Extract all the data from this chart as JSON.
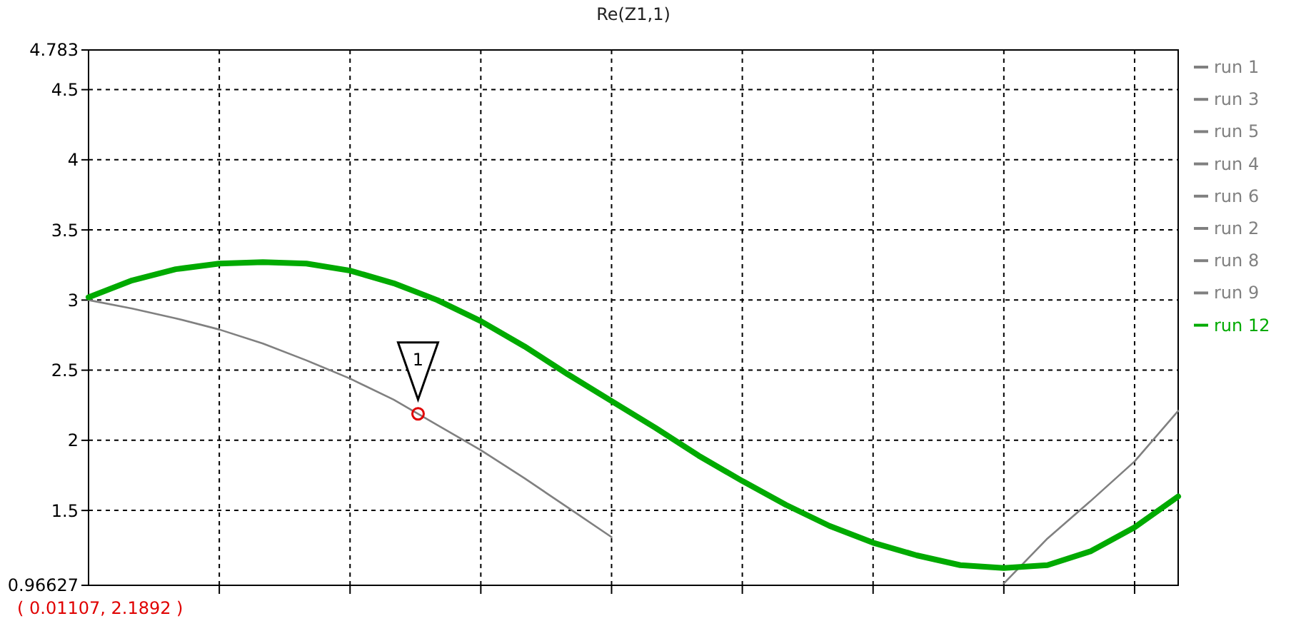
{
  "chart_data": {
    "type": "line",
    "title": "Re(Z1,1)",
    "categories": [
      null,
      null,
      null,
      null,
      null,
      null,
      null,
      null,
      null,
      null,
      null,
      null,
      null,
      null,
      null,
      null,
      null,
      null,
      null,
      null,
      null,
      null,
      null,
      null,
      null,
      null
    ],
    "ylim": [
      0.96627,
      4.783
    ],
    "yticks": [
      0.96627,
      1.5,
      2,
      2.5,
      3,
      3.5,
      4,
      4.5,
      4.783
    ],
    "grid": true,
    "legend": "right",
    "line_style": "solid",
    "marker": "none",
    "annotations": [
      {
        "text": "1",
        "y": 2.1892
      },
      "( 0.01107, 2.1892 )"
    ],
    "series": [
      {
        "name": "run 1",
        "color": "#808080",
        "values": [
          3.0,
          2.94,
          2.87,
          2.79,
          2.69,
          2.57,
          2.44,
          2.29,
          2.11,
          1.93,
          1.73,
          1.52,
          1.31,
          null,
          null,
          null,
          null,
          null,
          null,
          null,
          null,
          0.98,
          1.3,
          1.57,
          1.85,
          2.21
        ]
      },
      {
        "name": "run 3",
        "color": "#808080",
        "values": [
          null,
          null,
          null,
          null,
          null,
          null,
          null,
          null,
          null,
          null,
          null,
          null,
          null,
          null,
          null,
          null,
          null,
          null,
          null,
          null,
          null,
          null,
          null,
          null,
          null,
          null
        ]
      },
      {
        "name": "run 5",
        "color": "#808080",
        "values": [
          null,
          null,
          null,
          null,
          null,
          null,
          null,
          null,
          null,
          null,
          null,
          null,
          null,
          null,
          null,
          null,
          null,
          null,
          null,
          null,
          null,
          null,
          null,
          null,
          null,
          null
        ]
      },
      {
        "name": "run 4",
        "color": "#808080",
        "values": [
          null,
          null,
          null,
          null,
          null,
          null,
          null,
          null,
          null,
          null,
          null,
          null,
          null,
          null,
          null,
          null,
          null,
          null,
          null,
          null,
          null,
          null,
          null,
          null,
          null,
          null
        ]
      },
      {
        "name": "run 6",
        "color": "#808080",
        "values": [
          null,
          null,
          null,
          null,
          null,
          null,
          null,
          null,
          null,
          null,
          null,
          null,
          null,
          null,
          null,
          null,
          null,
          null,
          null,
          null,
          null,
          null,
          null,
          null,
          null,
          null
        ]
      },
      {
        "name": "run 2",
        "color": "#808080",
        "values": [
          null,
          null,
          null,
          null,
          null,
          null,
          null,
          null,
          null,
          null,
          null,
          null,
          null,
          null,
          null,
          null,
          null,
          null,
          null,
          null,
          null,
          null,
          null,
          null,
          null,
          null
        ]
      },
      {
        "name": "run 8",
        "color": "#808080",
        "values": [
          null,
          null,
          null,
          null,
          null,
          null,
          null,
          null,
          null,
          null,
          null,
          null,
          null,
          null,
          null,
          null,
          null,
          null,
          null,
          null,
          null,
          null,
          null,
          null,
          null,
          null
        ]
      },
      {
        "name": "run 9",
        "color": "#808080",
        "values": [
          null,
          null,
          null,
          null,
          null,
          null,
          null,
          null,
          null,
          null,
          null,
          null,
          null,
          null,
          null,
          null,
          null,
          null,
          null,
          null,
          null,
          null,
          null,
          null,
          null,
          null
        ]
      },
      {
        "name": "run 12",
        "color": "#00aa00",
        "values": [
          3.02,
          3.14,
          3.22,
          3.26,
          3.27,
          3.26,
          3.21,
          3.12,
          3.0,
          2.85,
          2.67,
          2.47,
          2.28,
          2.09,
          1.89,
          1.71,
          1.54,
          1.39,
          1.27,
          1.18,
          1.11,
          1.09,
          1.11,
          1.21,
          1.38,
          1.6
        ]
      }
    ]
  }
}
